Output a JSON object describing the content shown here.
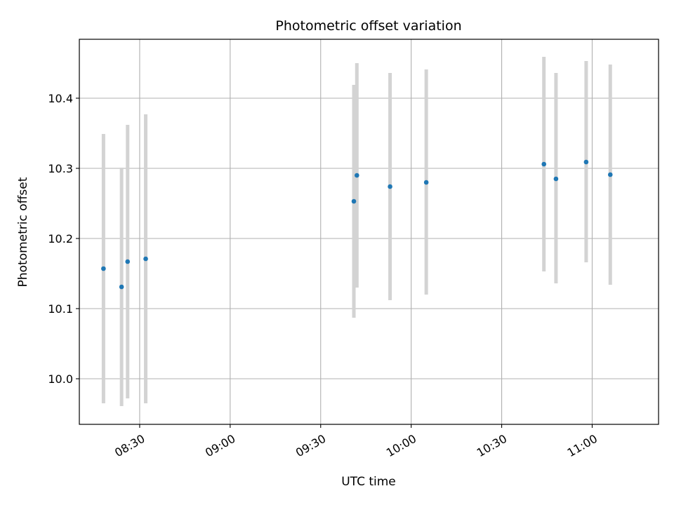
{
  "chart_data": {
    "type": "scatter",
    "title": "Photometric offset variation",
    "xlabel": "UTC time",
    "ylabel": "Photometric offset",
    "grid": true,
    "x_axis": {
      "kind": "time",
      "range": [
        "08:10",
        "11:22"
      ],
      "ticks": [
        "08:30",
        "09:00",
        "09:30",
        "10:00",
        "10:30",
        "11:00"
      ]
    },
    "y_axis": {
      "range": [
        9.935,
        10.484
      ],
      "ticks": [
        10.0,
        10.1,
        10.2,
        10.3,
        10.4
      ],
      "tick_labels": [
        "10.0",
        "10.1",
        "10.2",
        "10.3",
        "10.4"
      ]
    },
    "series": [
      {
        "marker_color": "#1f77b4",
        "errorbar_color": "#d3d3d3",
        "points": [
          {
            "x": "08:18",
            "y": 10.157,
            "ylow": 9.965,
            "yhigh": 10.349
          },
          {
            "x": "08:24",
            "y": 10.131,
            "ylow": 9.961,
            "yhigh": 10.301
          },
          {
            "x": "08:26",
            "y": 10.167,
            "ylow": 9.972,
            "yhigh": 10.362
          },
          {
            "x": "08:32",
            "y": 10.171,
            "ylow": 9.965,
            "yhigh": 10.377
          },
          {
            "x": "09:41",
            "y": 10.253,
            "ylow": 10.087,
            "yhigh": 10.419
          },
          {
            "x": "09:42",
            "y": 10.29,
            "ylow": 10.13,
            "yhigh": 10.45
          },
          {
            "x": "09:53",
            "y": 10.274,
            "ylow": 10.112,
            "yhigh": 10.436
          },
          {
            "x": "10:05",
            "y": 10.28,
            "ylow": 10.12,
            "yhigh": 10.441
          },
          {
            "x": "10:44",
            "y": 10.306,
            "ylow": 10.153,
            "yhigh": 10.459
          },
          {
            "x": "10:48",
            "y": 10.285,
            "ylow": 10.136,
            "yhigh": 10.436
          },
          {
            "x": "10:58",
            "y": 10.309,
            "ylow": 10.166,
            "yhigh": 10.453
          },
          {
            "x": "11:06",
            "y": 10.291,
            "ylow": 10.134,
            "yhigh": 10.448
          }
        ]
      }
    ]
  }
}
